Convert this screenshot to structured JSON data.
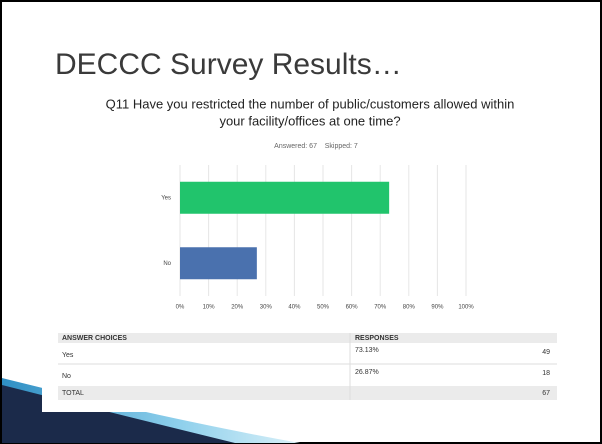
{
  "slide_title": "DECCC Survey Results…",
  "chart_data": {
    "type": "hbar",
    "title": [
      "Q11 Have you restricted the number of public/customers allowed within",
      "your facility/offices at one time?"
    ],
    "subtitle": "Answered: 67    Skipped: 7",
    "categories": [
      "Yes",
      "No"
    ],
    "values": [
      73.13,
      26.87
    ],
    "colors": [
      "#21c46c",
      "#4a71ae"
    ],
    "xlim": [
      0,
      100
    ],
    "xticks": [
      {
        "value": 0,
        "label": "0%"
      },
      {
        "value": 10,
        "label": "10%"
      },
      {
        "value": 20,
        "label": "20%"
      },
      {
        "value": 30,
        "label": "30%"
      },
      {
        "value": 40,
        "label": "40%"
      },
      {
        "value": 50,
        "label": "50%"
      },
      {
        "value": 60,
        "label": "60%"
      },
      {
        "value": 70,
        "label": "70%"
      },
      {
        "value": 80,
        "label": "80%"
      },
      {
        "value": 90,
        "label": "90%"
      },
      {
        "value": 100,
        "label": "100%"
      }
    ],
    "grid": true
  },
  "table": {
    "header": [
      "ANSWER CHOICES",
      "RESPONSES"
    ],
    "rows": [
      [
        "Yes",
        "73.13%",
        "49"
      ],
      [
        "No",
        "26.87%",
        "18"
      ]
    ],
    "total": [
      "TOTAL",
      "67"
    ]
  }
}
